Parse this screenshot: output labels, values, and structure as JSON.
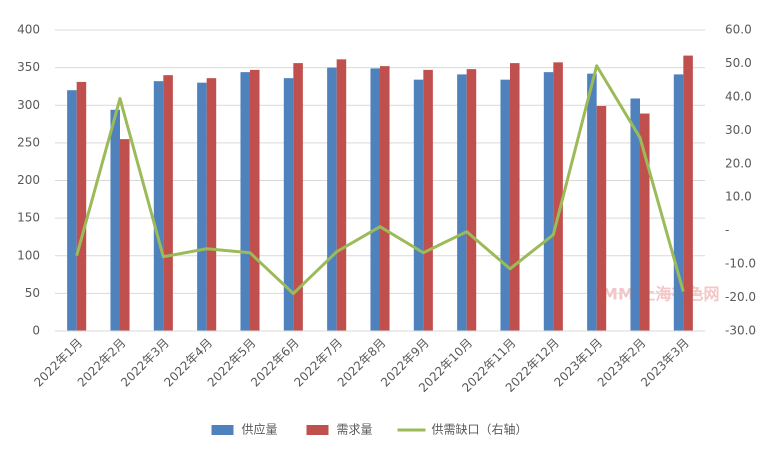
{
  "chart_data": {
    "type": "bar",
    "categories": [
      "2022年1月",
      "2022年2月",
      "2022年3月",
      "2022年4月",
      "2022年5月",
      "2022年6月",
      "2022年7月",
      "2022年8月",
      "2022年9月",
      "2022年10月",
      "2022年11月",
      "2022年12月",
      "2023年1月",
      "2023年2月",
      "2023年3月"
    ],
    "series": [
      {
        "name": "供应量",
        "color": "#4f81bd",
        "values": [
          320,
          294,
          332,
          330,
          344,
          336,
          350,
          349,
          334,
          341,
          334,
          344,
          342,
          309,
          341
        ]
      },
      {
        "name": "需求量",
        "color": "#c0504d",
        "values": [
          331,
          255,
          340,
          336,
          347,
          356,
          361,
          352,
          347,
          348,
          356,
          357,
          299,
          289,
          366
        ]
      },
      {
        "name": "供需缺口（右轴）",
        "color": "#9bbb59",
        "type": "line",
        "axis": "y2",
        "values": [
          -7.5,
          39.5,
          -7.8,
          -5.4,
          -6.6,
          -18.8,
          -6.3,
          1.2,
          -6.6,
          -0.3,
          -11.4,
          -1.2,
          49.3,
          27.8,
          -18.2
        ]
      }
    ],
    "ylim": [
      0,
      400
    ],
    "yticks": [
      0,
      50,
      100,
      150,
      200,
      250,
      300,
      350,
      400
    ],
    "y2lim": [
      -30,
      60
    ],
    "y2ticks": [
      {
        "value": -30,
        "label": "-30.0"
      },
      {
        "value": -20,
        "label": "-20.0"
      },
      {
        "value": -10,
        "label": "-10.0"
      },
      {
        "value": 0,
        "label": "-"
      },
      {
        "value": 10,
        "label": "10.0"
      },
      {
        "value": 20,
        "label": "20.0"
      },
      {
        "value": 30,
        "label": "30.0"
      },
      {
        "value": 40,
        "label": "40.0"
      },
      {
        "value": 50,
        "label": "50.0"
      },
      {
        "value": 60,
        "label": "60.0"
      }
    ],
    "grid": true,
    "legend": "bottom",
    "watermark": "SMM 上海有色网"
  }
}
